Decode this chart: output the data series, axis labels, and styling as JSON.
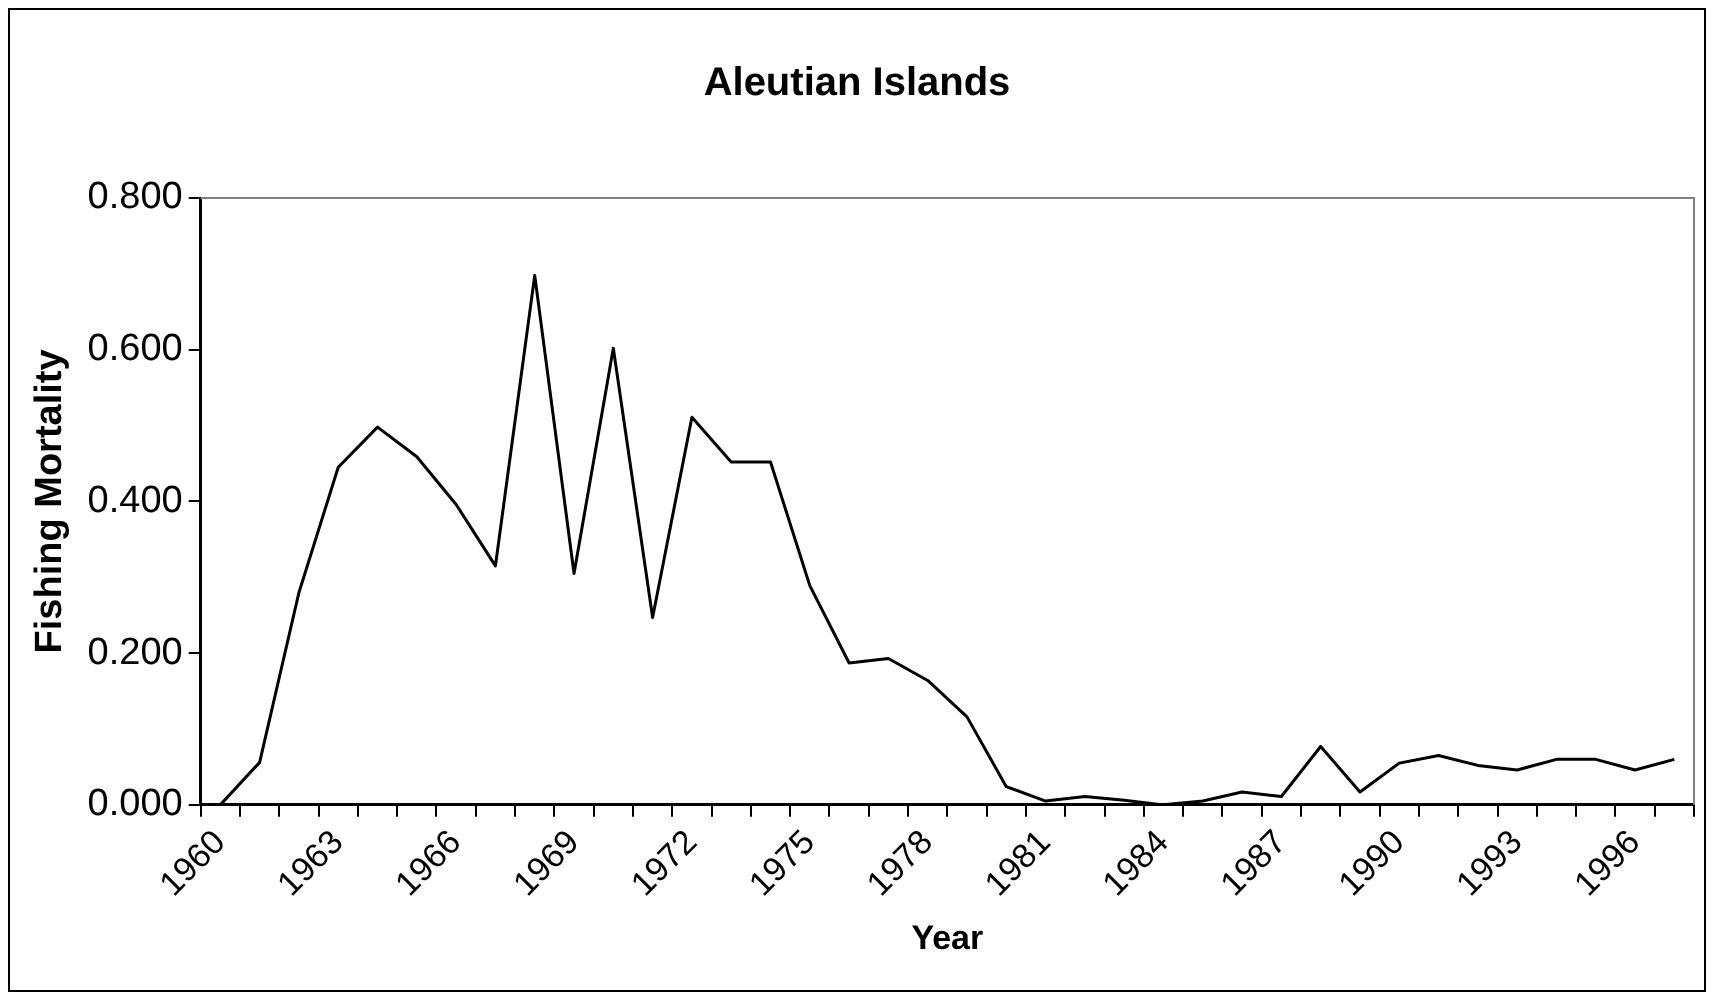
{
  "chart_data": {
    "type": "line",
    "title": "Aleutian Islands",
    "xlabel": "Year",
    "ylabel": "Fishing Mortality",
    "categories": [
      "1960",
      null,
      null,
      "1963",
      null,
      null,
      "1966",
      null,
      null,
      "1969",
      null,
      null,
      "1972",
      null,
      null,
      "1975",
      null,
      null,
      "1978",
      null,
      null,
      "1981",
      null,
      null,
      "1984",
      null,
      null,
      "1987",
      null,
      null,
      "1990",
      null,
      null,
      "1993",
      null,
      null,
      "1996",
      null
    ],
    "series": [
      {
        "color": "#000000",
        "values": [
          0,
          0.056,
          0.28,
          0.445,
          0.498,
          0.459,
          0.396,
          0.315,
          0.698,
          0.305,
          0.602,
          0.247,
          0.511,
          0.452,
          0.452,
          0.289,
          0.187,
          0.193,
          0.164,
          0.116,
          0.024,
          0.005,
          0.011,
          0.006,
          0,
          0.005,
          0.017,
          0.011,
          0.077,
          0.017,
          0.055,
          0.065,
          0.052,
          0.046,
          0.06,
          0.06,
          0.046,
          0.06
        ]
      }
    ],
    "ylim": [
      0,
      0.8
    ],
    "yticks": [
      {
        "value": 0,
        "label": "0.000"
      },
      {
        "value": 0.2,
        "label": "0.200"
      },
      {
        "value": 0.4,
        "label": "0.400"
      },
      {
        "value": 0.6,
        "label": "0.600"
      },
      {
        "value": 0.8,
        "label": "0.800"
      }
    ],
    "grid": false,
    "legend": false,
    "marker": "none",
    "line_style": "solid"
  }
}
